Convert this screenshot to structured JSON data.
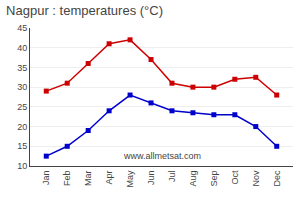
{
  "chart_data": {
    "type": "line",
    "title": "Nagpur : temperatures (°C)",
    "categories": [
      "Jan",
      "Feb",
      "Mar",
      "Apr",
      "May",
      "Jun",
      "Jul",
      "Aug",
      "Sep",
      "Oct",
      "Nov",
      "Dec"
    ],
    "series": [
      {
        "color": "#cc0000",
        "values": [
          29,
          31,
          36,
          41,
          42,
          37,
          31,
          30,
          30,
          32,
          32.5,
          28
        ]
      },
      {
        "color": "#0000cc",
        "values": [
          12.5,
          15,
          19,
          24,
          28,
          26,
          24,
          23.5,
          23,
          23,
          20,
          15
        ]
      }
    ],
    "ylim": [
      10,
      45
    ],
    "yticks": [
      10,
      15,
      20,
      25,
      30,
      35,
      40,
      45
    ],
    "grid": true,
    "marker": "square",
    "line_style": "solid",
    "annotations": [
      "www.allmetsat.com"
    ]
  }
}
